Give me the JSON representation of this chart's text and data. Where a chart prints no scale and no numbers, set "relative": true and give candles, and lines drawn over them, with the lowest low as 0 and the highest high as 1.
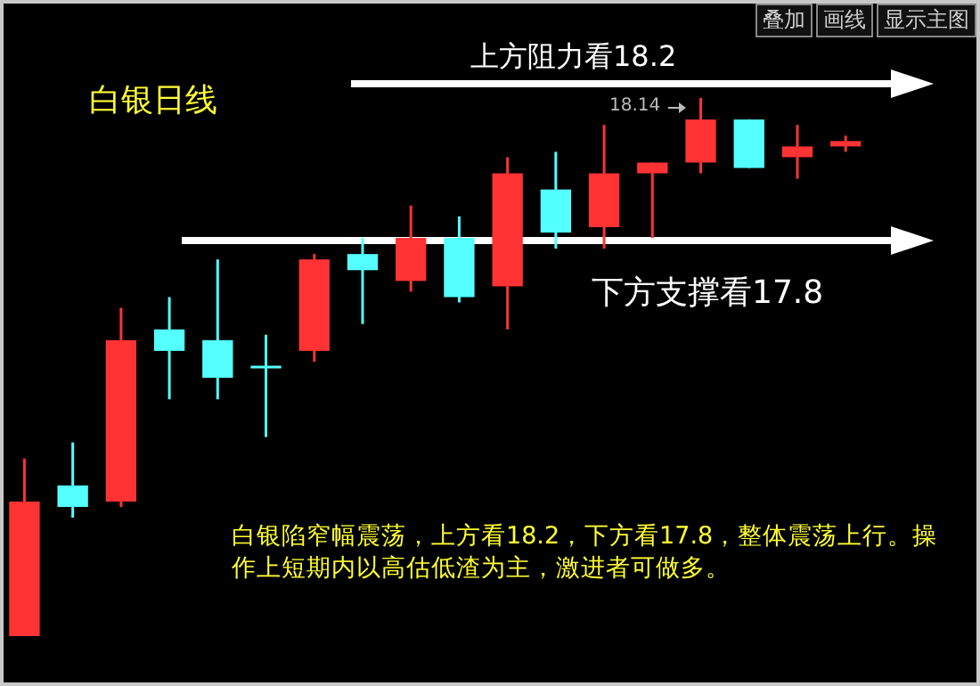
{
  "chart_data": {
    "type": "candlestick",
    "title": "白银日线",
    "relative": true,
    "categories": [
      null,
      null,
      null,
      null,
      null,
      null,
      null,
      null,
      null,
      null,
      null,
      null,
      null,
      null,
      null,
      null,
      null,
      null
    ],
    "ohlc": [
      [
        0,
        0.33,
        0,
        0.25
      ],
      [
        0.28,
        0.36,
        0.22,
        0.24
      ],
      [
        0.25,
        0.61,
        0.24,
        0.55
      ],
      [
        0.57,
        0.63,
        0.44,
        0.53
      ],
      [
        0.55,
        0.7,
        0.44,
        0.48
      ],
      [
        0.5,
        0.56,
        0.37,
        0.5
      ],
      [
        0.53,
        0.71,
        0.51,
        0.7
      ],
      [
        0.71,
        0.74,
        0.58,
        0.68
      ],
      [
        0.66,
        0.8,
        0.64,
        0.74
      ],
      [
        0.74,
        0.78,
        0.62,
        0.63
      ],
      [
        0.65,
        0.89,
        0.57,
        0.86
      ],
      [
        0.83,
        0.9,
        0.72,
        0.75
      ],
      [
        0.76,
        0.95,
        0.72,
        0.86
      ],
      [
        0.86,
        0.88,
        0.74,
        0.88
      ],
      [
        0.88,
        1,
        0.86,
        0.96
      ],
      [
        0.96,
        0.96,
        0.87,
        0.87
      ],
      [
        0.89,
        0.95,
        0.85,
        0.91
      ],
      [
        0.91,
        0.93,
        0.9,
        0.92
      ]
    ],
    "colors": [
      "#ff3333",
      "#54ffff",
      "#ff3333",
      "#54ffff",
      "#54ffff",
      "#54ffff",
      "#ff3333",
      "#54ffff",
      "#ff3333",
      "#54ffff",
      "#ff3333",
      "#54ffff",
      "#ff3333",
      "#ff3333",
      "#ff3333",
      "#54ffff",
      "#ff3333",
      "#ff3333"
    ],
    "annotations": [
      "上方阻力看18.2",
      "下方支撑看17.8",
      "18.14",
      "白银陷窄幅震荡，上方看18.2，下方看17.8，整体震荡上行。操作上短期内以高估低渣为主，激进者可做多。",
      "叠加",
      "画线",
      "显示主图"
    ]
  }
}
